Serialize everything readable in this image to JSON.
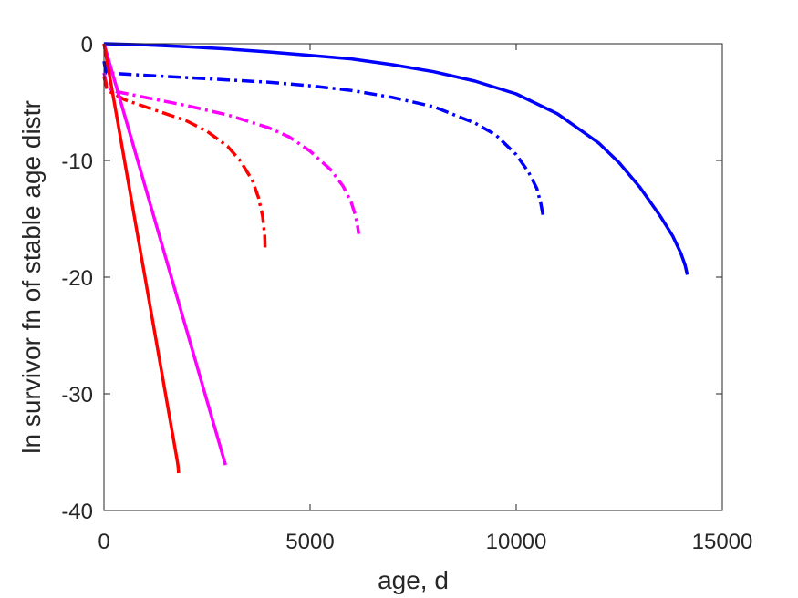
{
  "chart_data": {
    "type": "line",
    "title": "",
    "xlabel": "age, d",
    "ylabel": "ln survivor fn of stable age distr",
    "xlim": [
      0,
      15000
    ],
    "ylim": [
      -40,
      0
    ],
    "xticks": [
      0,
      5000,
      10000,
      15000
    ],
    "yticks": [
      0,
      -10,
      -20,
      -30,
      -40
    ],
    "xtick_labels": [
      "0",
      "5000",
      "10000",
      "15000"
    ],
    "ytick_labels": [
      "0",
      "-10",
      "-20",
      "-30",
      "-40"
    ],
    "grid": false,
    "series": [
      {
        "color": "#0000ff",
        "style": "solid",
        "x": [
          0,
          1000,
          2000,
          3000,
          4000,
          5000,
          6000,
          7000,
          8000,
          9000,
          10000,
          11000,
          12000,
          12500,
          13000,
          13500,
          13800,
          14000,
          14100,
          14150
        ],
        "y": [
          0,
          -0.1,
          -0.25,
          -0.45,
          -0.7,
          -1.0,
          -1.3,
          -1.8,
          -2.4,
          -3.2,
          -4.3,
          -6.0,
          -8.5,
          -10.2,
          -12.3,
          -14.8,
          -16.5,
          -18.0,
          -19.0,
          -19.8
        ]
      },
      {
        "color": "#0000ff",
        "style": "dashdot",
        "x": [
          0,
          50,
          500,
          1000,
          2000,
          3000,
          4000,
          5000,
          6000,
          7000,
          8000,
          9000,
          9500,
          10000,
          10300,
          10500,
          10600,
          10650
        ],
        "y": [
          -1.5,
          -2.5,
          -2.6,
          -2.7,
          -2.9,
          -3.1,
          -3.3,
          -3.6,
          -4.0,
          -4.6,
          -5.4,
          -6.8,
          -7.8,
          -9.5,
          -11.0,
          -12.4,
          -13.7,
          -14.7
        ]
      },
      {
        "color": "#ff00ff",
        "style": "dashdot",
        "x": [
          0,
          80,
          300,
          1000,
          2000,
          3000,
          4000,
          4500,
          5000,
          5500,
          5800,
          6000,
          6100,
          6150,
          6180
        ],
        "y": [
          -2.5,
          -3.8,
          -4.1,
          -4.6,
          -5.3,
          -6.1,
          -7.2,
          -8.0,
          -9.2,
          -10.8,
          -12.2,
          -13.6,
          -14.7,
          -15.6,
          -16.3
        ]
      },
      {
        "color": "#ff0000",
        "style": "dashdot",
        "x": [
          0,
          80,
          300,
          500,
          1000,
          1500,
          2000,
          2500,
          3000,
          3300,
          3600,
          3750,
          3850,
          3900,
          3910
        ],
        "y": [
          -2.8,
          -4.0,
          -4.4,
          -4.8,
          -5.4,
          -6.0,
          -6.6,
          -7.5,
          -8.8,
          -10.0,
          -11.7,
          -13.2,
          -14.8,
          -16.5,
          -17.8
        ]
      },
      {
        "color": "#ff00ff",
        "style": "solid",
        "x": [
          0,
          2950
        ],
        "y": [
          0,
          -36.1
        ]
      },
      {
        "color": "#ff0000",
        "style": "solid",
        "x": [
          0,
          1780,
          1800,
          1810
        ],
        "y": [
          0,
          -35.8,
          -36.3,
          -36.8
        ]
      }
    ]
  }
}
